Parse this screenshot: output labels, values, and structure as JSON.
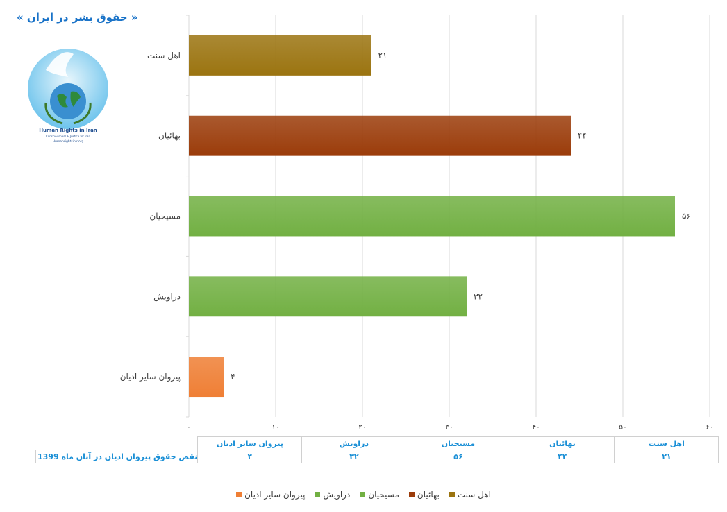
{
  "header": {
    "title": "« حقوق بشر در ایران »"
  },
  "logo": {
    "line1": "Human Rights in Iran",
    "line2": "Consciousness & Justice for Iran",
    "line3": "Humanrightsinir.org"
  },
  "colors": {
    "sunni": "#9b7410",
    "bahai": "#9b3c0a",
    "christian": "#72b043",
    "dervish": "#72b043",
    "others": "#ef7f35",
    "accent": "#1a73c8"
  },
  "chart_data": {
    "type": "bar",
    "orientation": "horizontal",
    "categories": [
      "اهل سنت",
      "بهائیان",
      "مسیحیان",
      "دراویش",
      "پیروان سایر ادیان"
    ],
    "values": [
      21,
      44,
      56,
      32,
      4
    ],
    "value_labels": [
      "۲۱",
      "۴۴",
      "۵۶",
      "۳۲",
      "۴"
    ],
    "series_colors": [
      "#9b7410",
      "#9b3c0a",
      "#72b043",
      "#72b043",
      "#ef7f35"
    ],
    "xlim": [
      0,
      60
    ],
    "xticks": [
      0,
      10,
      20,
      30,
      40,
      50,
      60
    ],
    "xtick_labels": [
      "۰",
      "۱۰",
      "۲۰",
      "۳۰",
      "۴۰",
      "۵۰",
      "۶۰"
    ],
    "grid": true,
    "legend_placement": "bottom"
  },
  "table": {
    "row_label": "نقض حقوق پیروان ادیان در آبان ماه 1399",
    "headers": [
      "پیروان سایر ادیان",
      "دراویش",
      "مسیحیان",
      "بهائیان",
      "اهل سنت"
    ],
    "values": [
      "۴",
      "۳۲",
      "۵۶",
      "۴۴",
      "۲۱"
    ]
  },
  "legend": [
    {
      "label": "اهل سنت",
      "color": "#9b7410"
    },
    {
      "label": "بهائیان",
      "color": "#9b3c0a"
    },
    {
      "label": "مسیحیان",
      "color": "#72b043"
    },
    {
      "label": "دراویش",
      "color": "#72b043"
    },
    {
      "label": "پیروان سایر ادیان",
      "color": "#ef7f35"
    }
  ]
}
